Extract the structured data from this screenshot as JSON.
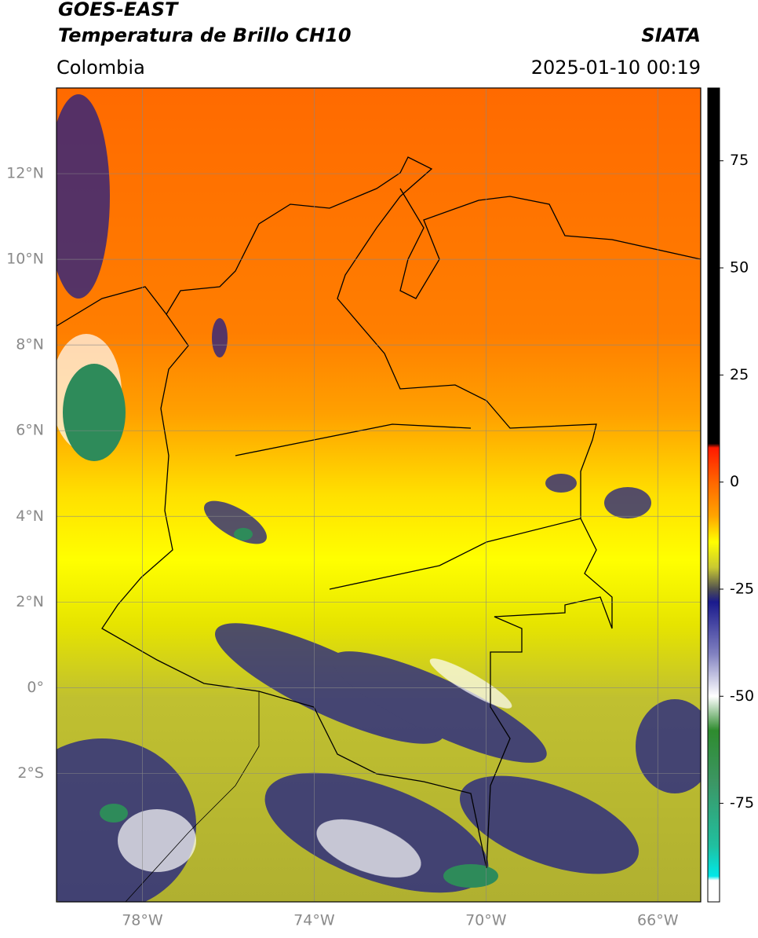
{
  "header": {
    "title": "GOES-EAST",
    "subtitle": "Temperatura de Brillo CH10",
    "region": "Colombia",
    "source": "SIATA",
    "datetime": "2025-01-10 00:19"
  },
  "map": {
    "lat_range": [
      -5,
      14
    ],
    "lon_range": [
      -80,
      -65
    ],
    "grid": true,
    "lat_ticks": [
      {
        "value": 12,
        "label": "12°N"
      },
      {
        "value": 10,
        "label": "10°N"
      },
      {
        "value": 8,
        "label": "8°N"
      },
      {
        "value": 6,
        "label": "6°N"
      },
      {
        "value": 4,
        "label": "4°N"
      },
      {
        "value": 2,
        "label": "2°N"
      },
      {
        "value": 0,
        "label": "0°"
      },
      {
        "value": -2,
        "label": "2°S"
      }
    ],
    "lon_ticks": [
      {
        "value": -78,
        "label": "78°W"
      },
      {
        "value": -74,
        "label": "74°W"
      },
      {
        "value": -70,
        "label": "70°W"
      },
      {
        "value": -66,
        "label": "66°W"
      }
    ]
  },
  "colorbar": {
    "range": [
      -98,
      92
    ],
    "ticks": [
      75,
      50,
      25,
      0,
      -25,
      -50,
      -75
    ],
    "colormap": [
      {
        "value": 92,
        "color": "#000000"
      },
      {
        "value": 9,
        "color": "#000000"
      },
      {
        "value": 8,
        "color": "#ff1a00"
      },
      {
        "value": 0,
        "color": "#ff6600"
      },
      {
        "value": -8,
        "color": "#ffa500"
      },
      {
        "value": -14,
        "color": "#ffff00"
      },
      {
        "value": -20,
        "color": "#c8c832"
      },
      {
        "value": -25,
        "color": "#505050"
      },
      {
        "value": -28,
        "color": "#1a1a8c"
      },
      {
        "value": -40,
        "color": "#8080c0"
      },
      {
        "value": -50,
        "color": "#ffffff"
      },
      {
        "value": -58,
        "color": "#2e8b2e"
      },
      {
        "value": -70,
        "color": "#3c9664"
      },
      {
        "value": -85,
        "color": "#20c0a0"
      },
      {
        "value": -92,
        "color": "#00e8e8"
      },
      {
        "value": -93,
        "color": "#ffffff"
      },
      {
        "value": -98,
        "color": "#ffffff"
      }
    ]
  }
}
